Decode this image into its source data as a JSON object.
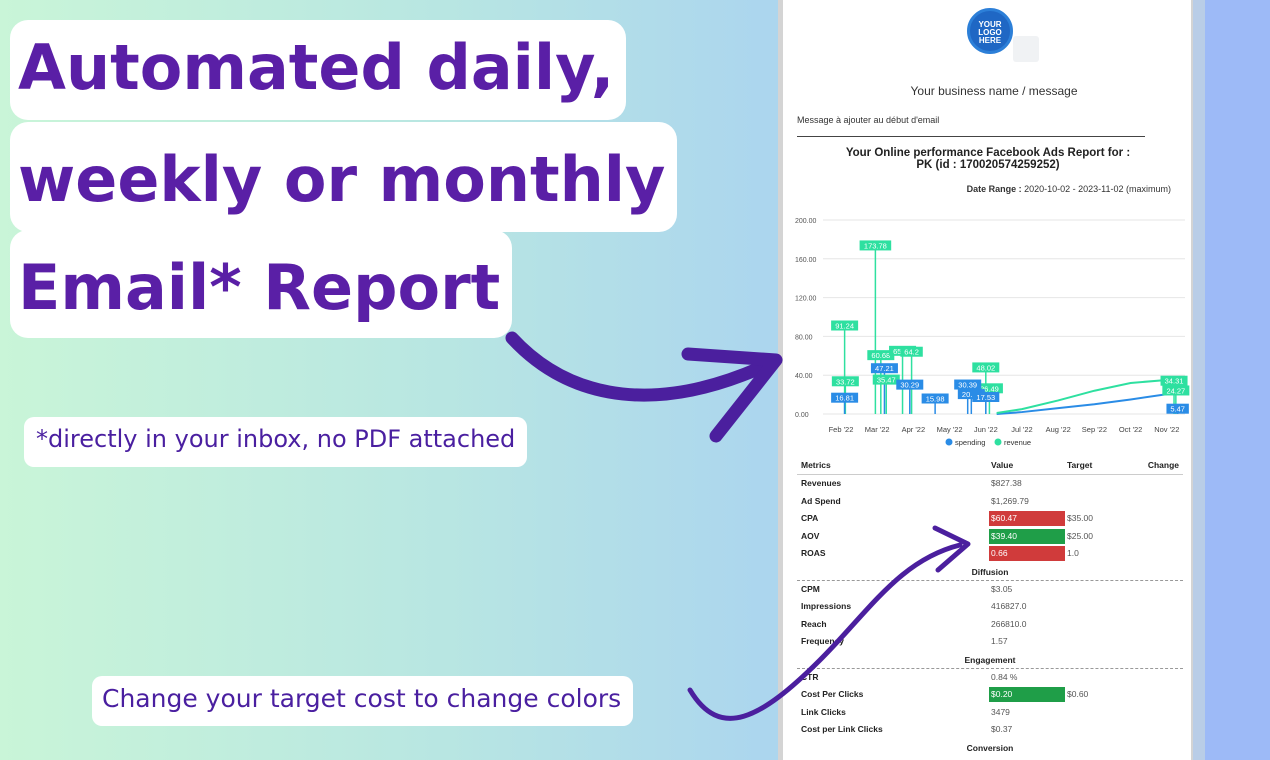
{
  "headline": {
    "line1": "Automated daily,",
    "line2": "weekly or monthly",
    "line3": "Email* Report"
  },
  "note_inbox": "*directly in your inbox, no PDF attached",
  "note_target": "Change your target cost to change colors",
  "report": {
    "logo_text": [
      "YOUR",
      "LOGO",
      "HERE"
    ],
    "business_name": "Your business name / message",
    "message": "Message à ajouter au début d'email",
    "title_line1": "Your Online performance Facebook Ads Report for :",
    "title_line2": "PK (id : 170020574259252)",
    "date_range_label": "Date Range :",
    "date_range_value": " 2020-10-02 - 2023-11-02 (maximum)"
  },
  "chart_data": {
    "type": "line",
    "y_ticks": [
      "200.00",
      "160.00",
      "120.00",
      "80.00",
      "40.00",
      "0.00"
    ],
    "x_ticks": [
      "Feb '22",
      "Mar '22",
      "Apr '22",
      "May '22",
      "Jun '22",
      "Jul '22",
      "Aug '22",
      "Sep '22",
      "Oct '22",
      "Nov '22"
    ],
    "ylim": [
      0,
      200
    ],
    "legend": [
      "spending",
      "revenue"
    ],
    "colors": {
      "spending": "#2a8ce6",
      "revenue": "#2ee0a0"
    },
    "revenue_labels": [
      {
        "x": 0.1,
        "v": 91.24
      },
      {
        "x": 0.12,
        "v": 33.72
      },
      {
        "x": 0.95,
        "v": 173.78
      },
      {
        "x": 1.1,
        "v": 60.68
      },
      {
        "x": 1.25,
        "v": 35.47
      },
      {
        "x": 1.7,
        "v": 65.13
      },
      {
        "x": 1.95,
        "v": 64.2
      },
      {
        "x": 4.0,
        "v": 48.02
      },
      {
        "x": 4.1,
        "v": 26.49
      },
      {
        "x": 9.2,
        "v": 34.31
      },
      {
        "x": 9.25,
        "v": 24.27
      }
    ],
    "spending_labels": [
      {
        "x": 0.1,
        "v": 16.81
      },
      {
        "x": 1.2,
        "v": 47.21
      },
      {
        "x": 1.9,
        "v": 30.29
      },
      {
        "x": 2.6,
        "v": 15.98
      },
      {
        "x": 3.5,
        "v": 30.39
      },
      {
        "x": 3.6,
        "v": 20.52
      },
      {
        "x": 4.0,
        "v": 17.53
      },
      {
        "x": 9.3,
        "v": 5.47
      }
    ],
    "revenue_curve": [
      [
        4.3,
        1
      ],
      [
        5.0,
        5
      ],
      [
        6.0,
        14
      ],
      [
        7.0,
        24
      ],
      [
        8.0,
        32
      ],
      [
        9.3,
        36
      ]
    ],
    "spending_curve": [
      [
        4.3,
        0
      ],
      [
        5.0,
        2
      ],
      [
        6.0,
        6
      ],
      [
        7.0,
        10
      ],
      [
        8.0,
        15
      ],
      [
        9.3,
        22
      ]
    ]
  },
  "metrics": {
    "headers": [
      "Metrics",
      "Value",
      "Target",
      "Change"
    ],
    "rows": [
      {
        "name": "Revenues",
        "value": "$827.38",
        "target": "",
        "status": ""
      },
      {
        "name": "Ad Spend",
        "value": "$1,269.79",
        "target": "",
        "status": ""
      },
      {
        "name": "CPA",
        "value": "$60.47",
        "target": "$35.00",
        "status": "red"
      },
      {
        "name": "AOV",
        "value": "$39.40",
        "target": "$25.00",
        "status": "green"
      },
      {
        "name": "ROAS",
        "value": "0.66",
        "target": "1.0",
        "status": "red"
      }
    ],
    "diffusion_label": "Diffusion",
    "diffusion": [
      {
        "name": "CPM",
        "value": "$3.05",
        "target": "",
        "status": ""
      },
      {
        "name": "Impressions",
        "value": "416827.0",
        "target": "",
        "status": ""
      },
      {
        "name": "Reach",
        "value": "266810.0",
        "target": "",
        "status": ""
      },
      {
        "name": "Frequency",
        "value": "1.57",
        "target": "",
        "status": ""
      }
    ],
    "engagement_label": "Engagement",
    "engagement": [
      {
        "name": "CTR",
        "value": "0.84 %",
        "target": "",
        "status": ""
      },
      {
        "name": "Cost Per Clicks",
        "value": "$0.20",
        "target": "$0.60",
        "status": "green"
      },
      {
        "name": "Link Clicks",
        "value": "3479",
        "target": "",
        "status": ""
      },
      {
        "name": "Cost per Link Clicks",
        "value": "$0.37",
        "target": "",
        "status": ""
      }
    ],
    "conversion_label": "Conversion"
  }
}
